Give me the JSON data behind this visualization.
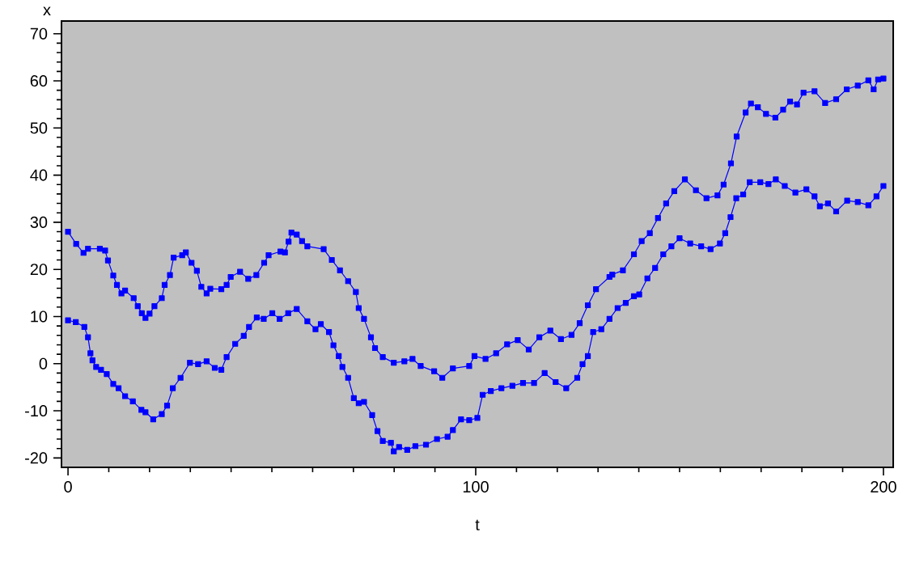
{
  "chart_data": {
    "type": "line",
    "xlabel": "t",
    "ylabel": "x",
    "xlim": [
      -1.6,
      202.4
    ],
    "ylim": [
      -22,
      72.7
    ],
    "xticks": [
      0,
      100,
      200
    ],
    "yticks": [
      -20,
      -10,
      0,
      10,
      20,
      30,
      40,
      50,
      60,
      70
    ],
    "marker": "square",
    "line_style": "solid",
    "series": [
      {
        "color": "#0000ff",
        "x": [
          0,
          2.0,
          3.8,
          4.9,
          7.8,
          9.1,
          9.8,
          11.1,
          12.0,
          13.1,
          14.0,
          16.1,
          17.1,
          18.1,
          19.0,
          20.0,
          21.2,
          23.0,
          23.7,
          25.0,
          25.9,
          28.0,
          28.9,
          30.3,
          31.6,
          32.7,
          34.0,
          34.9,
          37.6,
          38.9,
          39.9,
          42.2,
          44.2,
          46.2,
          48.1,
          49.2,
          52.1,
          53.2,
          54.1,
          54.8,
          56.1,
          57.4,
          58.7,
          62.7,
          64.7,
          66.7,
          68.7,
          70.6,
          71.3,
          72.6,
          74.3,
          75.3,
          77.2,
          79.9,
          82.5,
          84.5,
          86.5,
          89.8,
          91.8,
          94.4,
          98.4,
          99.7,
          102.4,
          105.0,
          107.7,
          110.3,
          113.0,
          115.6,
          118.3,
          120.9,
          123.5,
          125.5,
          127.5,
          129.5,
          132.8,
          133.5,
          136.1,
          138.8,
          140.7,
          142.7,
          144.7,
          146.7,
          148.7,
          151.3,
          154.0,
          156.6,
          159.3,
          160.8,
          162.6,
          164.0,
          166.2,
          167.5,
          169.2,
          171.2,
          173.5,
          175.4,
          177.1,
          178.8,
          180.4,
          183.1,
          185.7,
          188.4,
          191.0,
          193.7,
          196.3,
          197.6,
          198.7,
          200
        ],
        "values": [
          28,
          25.4,
          23.5,
          24.4,
          24.4,
          24,
          21.9,
          18.7,
          16.7,
          14.9,
          15.5,
          13.9,
          12.2,
          10.7,
          9.7,
          10.6,
          12.2,
          13.9,
          16.7,
          18.8,
          22.5,
          23,
          23.6,
          21.4,
          19.7,
          16.3,
          14.9,
          15.9,
          15.8,
          16.7,
          18.4,
          19.5,
          18,
          18.8,
          21.4,
          23,
          23.8,
          23.6,
          25.9,
          27.8,
          27.4,
          26,
          24.9,
          24.3,
          22,
          19.8,
          17.5,
          15.2,
          11.8,
          9.5,
          5.6,
          3.3,
          1.4,
          0.2,
          0.5,
          1,
          -0.5,
          -1.6,
          -3,
          -1,
          -0.5,
          1.6,
          1,
          2.2,
          4.1,
          5,
          3,
          5.6,
          7,
          5.2,
          6.1,
          8.6,
          12.4,
          15.8,
          18.4,
          18.9,
          19.8,
          23.2,
          26,
          27.7,
          30.9,
          34,
          36.6,
          39.1,
          36.8,
          35.1,
          35.7,
          38,
          42.5,
          48.2,
          53.3,
          55.2,
          54.4,
          53,
          52.2,
          53.9,
          55.6,
          55,
          57.5,
          57.8,
          55.3,
          56.1,
          58.2,
          59,
          60.1,
          58.2,
          60.3,
          60.5
        ]
      },
      {
        "color": "#0000ff",
        "x": [
          0,
          1.9,
          4.0,
          4.9,
          5.5,
          6.0,
          6.9,
          8.1,
          9.5,
          11.1,
          12.4,
          14.0,
          15.9,
          18.0,
          19.0,
          20.9,
          23.0,
          24.3,
          25.7,
          27.6,
          29.9,
          31.9,
          34.0,
          36.0,
          37.6,
          38.9,
          41.0,
          43.1,
          44.4,
          46.3,
          48.0,
          50.1,
          51.9,
          54.0,
          56.1,
          58.7,
          60.7,
          62.0,
          64.0,
          65.1,
          66.4,
          67.3,
          68.7,
          70.1,
          71.3,
          72.6,
          74.6,
          75.9,
          77.2,
          79.2,
          79.9,
          81.2,
          83.2,
          85.2,
          87.8,
          90.5,
          93.1,
          94.4,
          96.4,
          98.4,
          100.4,
          101.7,
          103.7,
          106.3,
          109.0,
          111.6,
          114.3,
          116.9,
          119.6,
          122.2,
          124.9,
          126.2,
          127.5,
          128.8,
          130.8,
          132.8,
          134.8,
          136.8,
          138.8,
          140.1,
          142.1,
          144.0,
          146.0,
          148.0,
          150.0,
          152.6,
          155.3,
          157.6,
          159.9,
          161.2,
          162.5,
          163.9,
          165.6,
          167.2,
          169.8,
          171.8,
          173.6,
          175.8,
          178.4,
          181.1,
          183.1,
          184.4,
          186.4,
          188.4,
          191.1,
          193.7,
          196.3,
          198.3,
          200
        ],
        "values": [
          9.2,
          8.8,
          7.8,
          5.6,
          2.2,
          0.7,
          -0.7,
          -1.3,
          -2.2,
          -4.3,
          -5.2,
          -6.9,
          -8,
          -9.8,
          -10.3,
          -11.8,
          -10.7,
          -8.9,
          -5.2,
          -3,
          0.2,
          -0.1,
          0.5,
          -0.9,
          -1.3,
          1.4,
          4.2,
          5.9,
          7.8,
          9.8,
          9.5,
          10.7,
          9.5,
          10.7,
          11.6,
          9,
          7.3,
          8.4,
          6.7,
          3.9,
          1.6,
          -0.7,
          -3,
          -7.3,
          -8.4,
          -8.1,
          -10.9,
          -14.3,
          -16.4,
          -16.8,
          -18.6,
          -17.7,
          -18.3,
          -17.5,
          -17.2,
          -16,
          -15.5,
          -14.1,
          -11.8,
          -12,
          -11.5,
          -6.6,
          -5.8,
          -5.2,
          -4.7,
          -4.1,
          -4.1,
          -2,
          -3.9,
          -5.2,
          -3,
          -0.1,
          1.6,
          6.7,
          7.3,
          9.5,
          11.8,
          12.9,
          14.3,
          14.7,
          18.1,
          20.3,
          23.2,
          24.9,
          26.6,
          25.5,
          24.9,
          24.3,
          25.5,
          27.7,
          31.1,
          35.1,
          35.9,
          38.5,
          38.5,
          38.1,
          39.1,
          37.7,
          36.3,
          37,
          35.5,
          33.4,
          34,
          32.3,
          34.6,
          34.3,
          33.6,
          35.5,
          37.7
        ]
      }
    ]
  }
}
